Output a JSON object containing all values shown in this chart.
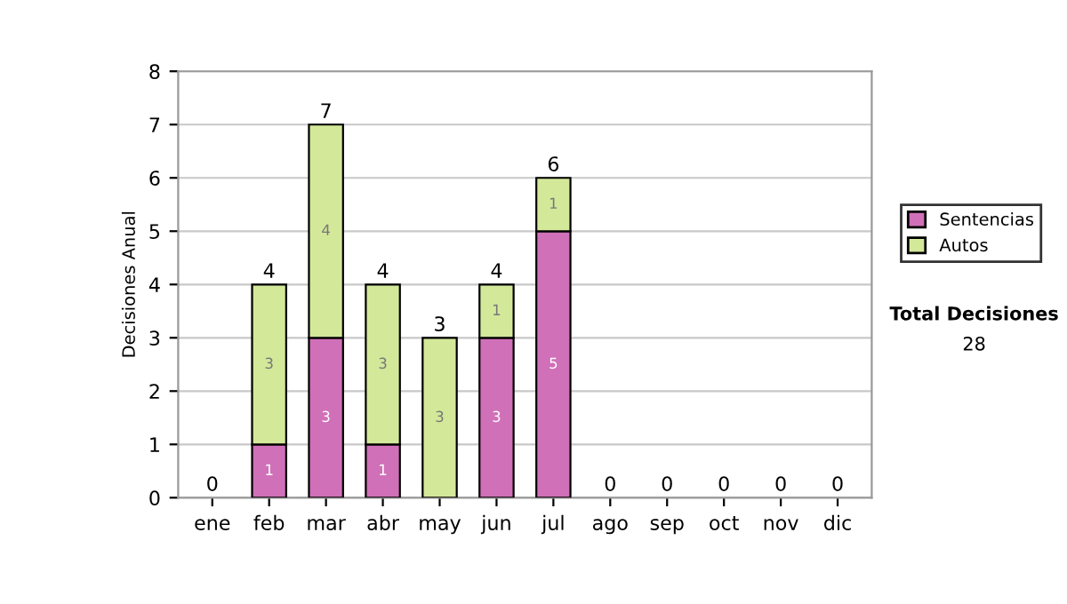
{
  "chart_data": {
    "type": "bar",
    "stacked": true,
    "ylabel": "Decisiones Anual",
    "categories": [
      "ene",
      "feb",
      "mar",
      "abr",
      "may",
      "jun",
      "jul",
      "ago",
      "sep",
      "oct",
      "nov",
      "dic"
    ],
    "series": [
      {
        "name": "Sentencias",
        "color": "#d070b8",
        "values": [
          0,
          1,
          3,
          1,
          0,
          3,
          5,
          0,
          0,
          0,
          0,
          0
        ],
        "value_labels": [
          null,
          "1",
          "3",
          "1",
          null,
          "3",
          "5",
          null,
          null,
          null,
          null,
          null
        ]
      },
      {
        "name": "Autos",
        "color": "#d4e89a",
        "values": [
          0,
          3,
          4,
          3,
          3,
          1,
          1,
          0,
          0,
          0,
          0,
          0
        ],
        "value_labels": [
          null,
          "3",
          "4",
          "3",
          "3",
          "1",
          "1",
          null,
          null,
          null,
          null,
          null
        ]
      }
    ],
    "totals": [
      "0",
      "4",
      "7",
      "4",
      "3",
      "4",
      "6",
      "0",
      "0",
      "0",
      "0",
      "0"
    ],
    "ylim": [
      0,
      8
    ],
    "yticks": [
      0,
      1,
      2,
      3,
      4,
      5,
      6,
      7,
      8
    ],
    "grid": "y",
    "legend": "right",
    "annotations": [
      "Total Decisiones",
      "28"
    ]
  }
}
